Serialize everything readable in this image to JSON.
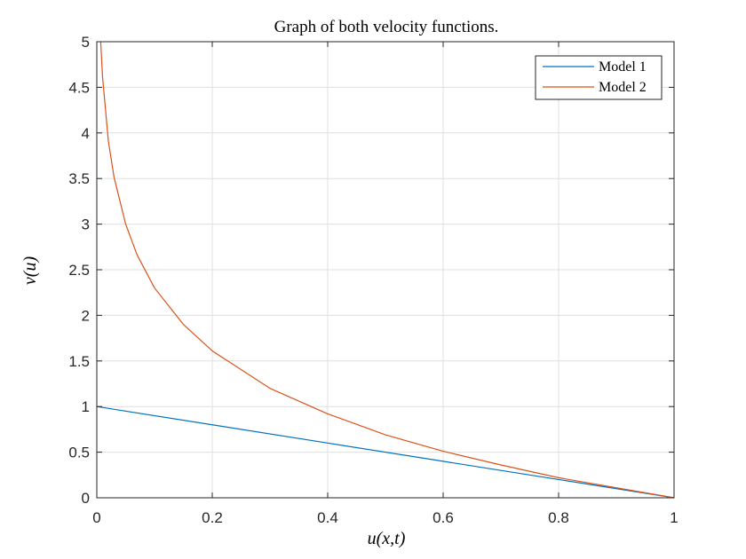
{
  "chart_data": {
    "type": "line",
    "title": "Graph of both velocity functions.",
    "xlabel": "u(x,t)",
    "ylabel": "v(u)",
    "xlim": [
      0,
      1
    ],
    "ylim": [
      0,
      5
    ],
    "xticks": [
      0,
      0.2,
      0.4,
      0.6,
      0.8,
      1
    ],
    "xtick_labels": [
      "0",
      "0.2",
      "0.4",
      "0.6",
      "0.8",
      "1"
    ],
    "yticks": [
      0,
      0.5,
      1,
      1.5,
      2,
      2.5,
      3,
      3.5,
      4,
      4.5,
      5
    ],
    "ytick_labels": [
      "0",
      "0.5",
      "1",
      "1.5",
      "2",
      "2.5",
      "3",
      "3.5",
      "4",
      "4.5",
      "5"
    ],
    "grid": true,
    "legend_position": "top-right",
    "series": [
      {
        "name": "Model 1",
        "color": "#0072BD",
        "x": [
          0,
          0.2,
          0.4,
          0.6,
          0.8,
          1
        ],
        "y": [
          1,
          0.8,
          0.6,
          0.4,
          0.2,
          0
        ]
      },
      {
        "name": "Model 2",
        "color": "#D95319",
        "x": [
          0.0067,
          0.01,
          0.02,
          0.03,
          0.05,
          0.07,
          0.1,
          0.15,
          0.2,
          0.3,
          0.4,
          0.5,
          0.6,
          0.7,
          0.8,
          0.9,
          1
        ],
        "y": [
          5.0,
          4.61,
          3.91,
          3.51,
          3.0,
          2.66,
          2.3,
          1.9,
          1.61,
          1.2,
          0.92,
          0.69,
          0.51,
          0.36,
          0.22,
          0.11,
          0
        ]
      }
    ]
  }
}
